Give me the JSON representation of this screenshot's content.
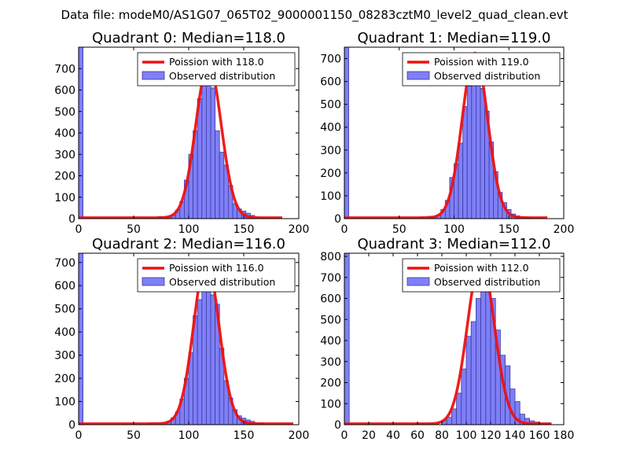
{
  "figure": {
    "suptitle": "Data file: modeM0/AS1G07_065T02_9000001150_08283cztM0_level2_quad_clean.evt"
  },
  "colors": {
    "bar_fill": "#7f7ff7",
    "bar_stroke": "#3a3aa0",
    "line": "#ee1111",
    "axis": "#000000",
    "legend_border": "#000000"
  },
  "chart_data": [
    {
      "type": "bar",
      "title": "Quadrant 0: Median=118.0",
      "xlim": [
        0,
        200
      ],
      "ylim": [
        0,
        800
      ],
      "xticks": [
        0,
        50,
        100,
        150,
        200
      ],
      "yticks": [
        0,
        100,
        200,
        300,
        400,
        500,
        600,
        700
      ],
      "bin_width": 4,
      "bins_start": [
        0,
        72,
        76,
        80,
        84,
        88,
        92,
        96,
        100,
        104,
        108,
        112,
        116,
        120,
        124,
        128,
        132,
        136,
        140,
        144,
        148,
        152,
        156,
        160,
        164
      ],
      "bins_count": [
        800,
        10,
        8,
        5,
        15,
        40,
        80,
        180,
        300,
        410,
        560,
        650,
        640,
        610,
        410,
        310,
        250,
        155,
        70,
        45,
        35,
        25,
        15,
        8,
        3
      ],
      "poisson_mean": 118,
      "poisson_peak": 720,
      "poisson_sigma": 11.5,
      "poisson_xrange": [
        0,
        185
      ],
      "legend": [
        "Poission with 118.0",
        "Observed distribution"
      ]
    },
    {
      "type": "bar",
      "title": "Quadrant 1: Median=119.0",
      "xlim": [
        0,
        200
      ],
      "ylim": [
        0,
        750
      ],
      "xticks": [
        0,
        50,
        100,
        150,
        200
      ],
      "yticks": [
        0,
        100,
        200,
        300,
        400,
        500,
        600,
        700
      ],
      "bin_width": 4,
      "bins_start": [
        0,
        68,
        76,
        80,
        84,
        88,
        92,
        96,
        100,
        104,
        108,
        112,
        116,
        120,
        124,
        128,
        132,
        136,
        140,
        144,
        148,
        152,
        156,
        160,
        164,
        168
      ],
      "bins_count": [
        750,
        5,
        10,
        8,
        15,
        40,
        80,
        180,
        240,
        330,
        490,
        580,
        700,
        660,
        570,
        470,
        335,
        205,
        115,
        70,
        40,
        20,
        12,
        8,
        4,
        2
      ],
      "poisson_mean": 119,
      "poisson_peak": 720,
      "poisson_sigma": 11.5,
      "poisson_xrange": [
        0,
        185
      ],
      "legend": [
        "Poission with 119.0",
        "Observed distribution"
      ]
    },
    {
      "type": "bar",
      "title": "Quadrant 2: Median=116.0",
      "xlim": [
        0,
        200
      ],
      "ylim": [
        0,
        740
      ],
      "xticks": [
        0,
        50,
        100,
        150,
        200
      ],
      "yticks": [
        0,
        100,
        200,
        300,
        400,
        500,
        600,
        700
      ],
      "bin_width": 4,
      "bins_start": [
        0,
        64,
        80,
        84,
        88,
        92,
        96,
        100,
        104,
        108,
        112,
        116,
        120,
        124,
        128,
        132,
        136,
        140,
        144,
        148,
        152,
        156,
        160,
        164
      ],
      "bins_count": [
        740,
        5,
        15,
        30,
        55,
        110,
        200,
        310,
        470,
        540,
        590,
        680,
        560,
        520,
        330,
        190,
        115,
        65,
        38,
        28,
        20,
        14,
        8,
        5
      ],
      "poisson_mean": 116,
      "poisson_peak": 705,
      "poisson_sigma": 11.5,
      "poisson_xrange": [
        0,
        195
      ],
      "legend": [
        "Poission with 116.0",
        "Observed distribution"
      ]
    },
    {
      "type": "bar",
      "title": "Quadrant 3: Median=112.0",
      "xlim": [
        0,
        180
      ],
      "ylim": [
        0,
        815
      ],
      "xticks": [
        0,
        20,
        40,
        60,
        80,
        100,
        120,
        140,
        160,
        180
      ],
      "yticks": [
        0,
        100,
        200,
        300,
        400,
        500,
        600,
        700,
        800
      ],
      "bin_width": 4,
      "bins_start": [
        0,
        60,
        64,
        80,
        84,
        88,
        92,
        96,
        100,
        104,
        108,
        112,
        116,
        120,
        124,
        128,
        132,
        136,
        140,
        144,
        148,
        152,
        156,
        160,
        164
      ],
      "bins_count": [
        815,
        5,
        5,
        20,
        35,
        75,
        150,
        265,
        420,
        490,
        600,
        690,
        720,
        600,
        450,
        330,
        280,
        170,
        110,
        50,
        30,
        18,
        12,
        6,
        3
      ],
      "poisson_mean": 112,
      "poisson_peak": 780,
      "poisson_sigma": 11.0,
      "poisson_xrange": [
        0,
        170
      ],
      "legend": [
        "Poission with 112.0",
        "Observed distribution"
      ]
    }
  ]
}
